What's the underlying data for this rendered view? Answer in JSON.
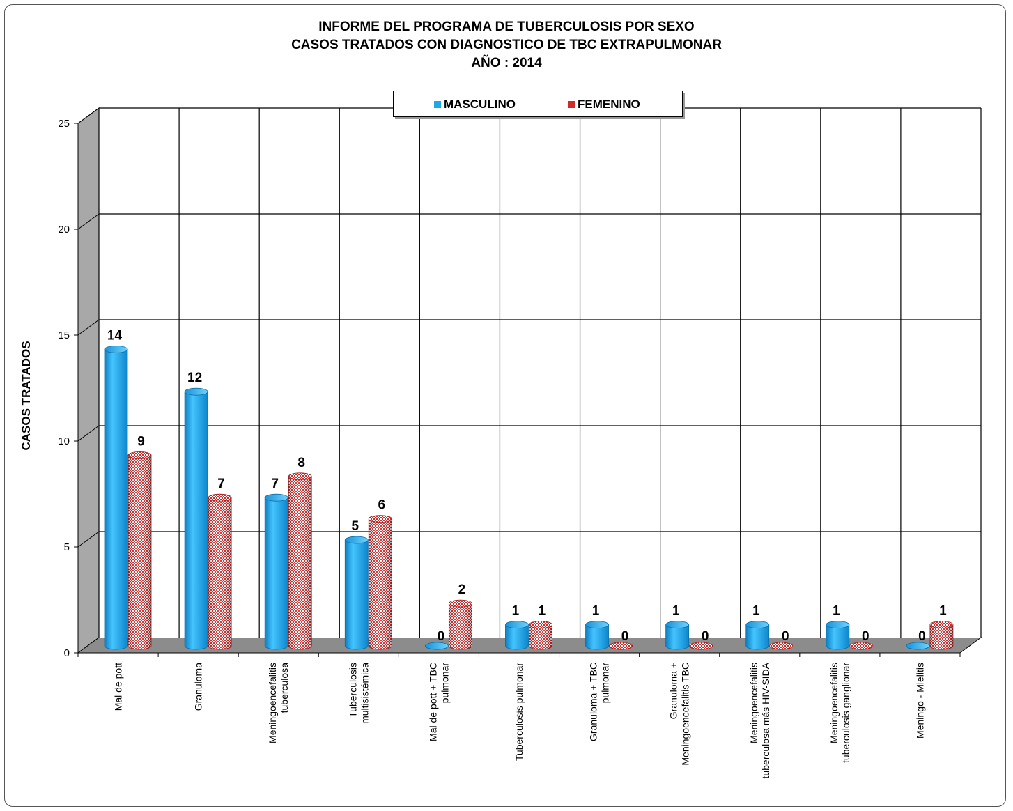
{
  "chart_data": {
    "type": "bar",
    "title": "INFORME DEL PROGRAMA DE TUBERCULOSIS POR SEXO",
    "subtitle": "CASOS TRATADOS CON DIAGNOSTICO DE TBC EXTRAPULMONAR",
    "year_label": "AÑO : 2014",
    "ylabel": "CASOS TRATADOS",
    "xlabel": "",
    "ylim": [
      0,
      25
    ],
    "yticks": [
      0,
      5,
      10,
      15,
      20,
      25
    ],
    "grid": true,
    "legend_position": "top-center",
    "categories": [
      [
        "Mal de pott"
      ],
      [
        "Granuloma"
      ],
      [
        "Meningoencefalitis",
        "tuberculosa"
      ],
      [
        "Tuberculosis",
        "multisistémica"
      ],
      [
        "Mal de pott + TBC",
        "pulmonar"
      ],
      [
        "Tuberculosis pulmonar"
      ],
      [
        "Granuloma + TBC",
        "pulmonar"
      ],
      [
        "Granuloma +",
        "Meningoencefalitis TBC"
      ],
      [
        "Meningoencefalitis",
        "tuberculosa más HIV-SIDA"
      ],
      [
        "Meningoencefalitis",
        "tuberculosis ganglionar"
      ],
      [
        "Meningo - Mielitis"
      ]
    ],
    "series": [
      {
        "name": "MASCULINO",
        "values": [
          14,
          12,
          7,
          5,
          0,
          1,
          1,
          1,
          1,
          1,
          0
        ],
        "color": "#1ea8e8"
      },
      {
        "name": "FEMENINO",
        "values": [
          9,
          7,
          8,
          6,
          2,
          1,
          0,
          0,
          0,
          0,
          1
        ],
        "color": "#d22a2a"
      }
    ]
  }
}
